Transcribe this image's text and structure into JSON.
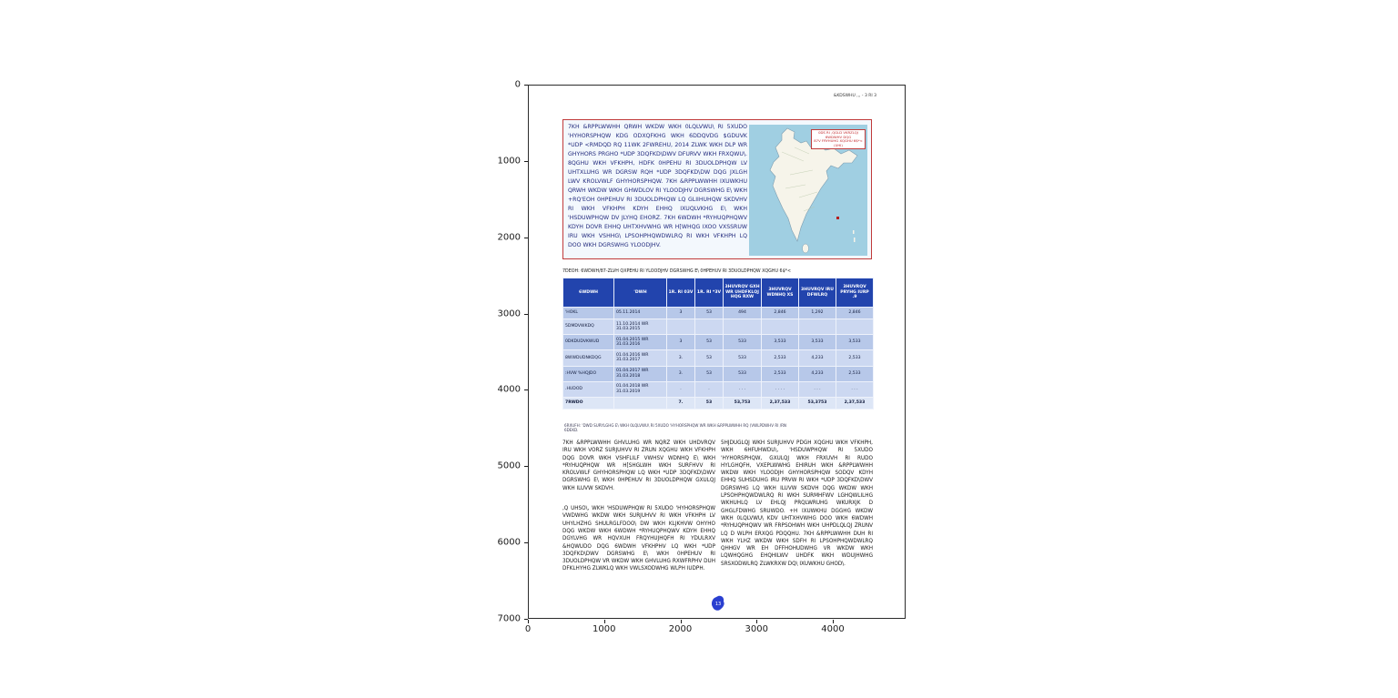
{
  "figure": {
    "x_ticks": [
      "0",
      "1000",
      "2000",
      "3000",
      "4000"
    ],
    "y_ticks": [
      "0",
      "1000",
      "2000",
      "3000",
      "4000",
      "5000",
      "6000",
      "7000"
    ]
  },
  "page": {
    "header_right": "&KDSWHU ,,, - 3 RI 3",
    "intro_box": {
      "text": "7KH &RPPLWWHH QRWH WKDW WKH 0LQLVWU\\ RI 5XUDO 'HYHORSPHQW KDG ODXQFKHG WKH 6DDQVDG $GDUVK *UDP <RMDQD RQ 11WK 2FWREHU, 2014 ZLWK WKH DLP WR GHYHORS PRGHO *UDP 3DQFKD\\DWV DFURVV WKH FRXQWU\\. 8QGHU WKH VFKHPH, HDFK 0HPEHU RI 3DUOLDPHQW LV UHTXLUHG WR DGRSW RQH *UDP 3DQFKD\\DW DQG JXLGH LWV KROLVWLF GHYHORSPHQW. 7KH &RPPLWWHH IXUWKHU QRWH WKDW WKH GHWDLOV RI YLOODJHV DGRSWHG E\\ WKH +RQ'EOH 0HPEHUV RI 3DUOLDPHQW LQ GLIIHUHQW SKDVHV RI WKH VFKHPH KDYH EHHQ IXUQLVKHG E\\ WKH 'HSDUWPHQW DV JLYHQ EHORZ. 7KH 6WDWH *RYHUQPHQWV KDYH DOVR EHHQ UHTXHVWHG WR H[WHQG IXOO VXSSRUW IRU WKH VSHHG\\ LPSOHPHQWDWLRQ RI WKH VFKHPH LQ DOO WKH DGRSWHG YLOODJHV.",
      "map": {
        "caption_line1": "0DS RI ,QGLD VKRZLQJ 6WDWHV DQG",
        "caption_line2": "87V FRYHUHG XQGHU 6$*< (UHI)"
      }
    },
    "table_title": "7DEOH: 6WDWH/87-ZLVH QXPEHU RI YLOODJHV DGRSWHG E\\ 0HPEHUV RI 3DUOLDPHQW XQGHU 6$*<",
    "table": {
      "headers": [
        "6WDWH",
        "'DWH",
        "1R. RI 03V",
        "1R. RI *3V",
        "3HUVRQV GXH WR UHDFKLQJ HQG RXW",
        "3HUVRQV WDNHQ XS",
        "3HUVRQV IRU DFWLRQ",
        "3HUVRQV PRYHG IURP .9"
      ],
      "rows": [
        [
          "'HOKL",
          "05.11.2014",
          "3",
          "53",
          "494",
          "2,846",
          "1,292",
          "2,846"
        ],
        [
          "5DMDVWKDQ",
          "11.10.2014 WR 31.03.2015",
          "",
          "",
          "",
          "",
          "",
          ""
        ],
        [
          "0DKDUDVKWUD",
          "01.04.2015 WR 31.03.2016",
          "3",
          "53",
          "533",
          "3,533",
          "3,533",
          "3,533"
        ],
        [
          "8WWDUDNKDQG",
          "01.04.2016 WR 31.03.2017",
          "3.",
          "53",
          "533",
          "2,533",
          "4,233",
          "2,533"
        ],
        [
          ":HVW %HQJDO",
          "01.04.2017 WR 31.03.2018",
          "3.",
          "53",
          "533",
          "2,533",
          "4,233",
          "2,533"
        ],
        [
          ".HUDOD",
          "01.04.2018 WR 31.03.2019",
          ".",
          ".",
          ". . .",
          ". . . .",
          ". . .",
          ". . ."
        ],
        [
          "7RWDO",
          "",
          "7.",
          "53",
          "53,753",
          "2,37,533",
          "53,3753",
          "2,37,533"
        ]
      ]
    },
    "source_note": "6RXUFH: 'DWD SURYLGHG E\\ WKH 0LQLVWU\\ RI 5XUDO 'HYHORSPHQW WR WKH &RPPLWWHH RQ (VWLPDWHV RI /RN 6DEKD.",
    "body": {
      "left_para_1": "7KH &RPPLWWHH GHVLUHG WR NQRZ WKH UHDVRQV IRU WKH VORZ SURJUHVV RI ZRUN XQGHU WKH VFKHPH DQG DOVR WKH VSHFLILF VWHSV WDNHQ E\\ WKH *RYHUQPHQW WR H[SHGLWH WKH SURFHVV RI KROLVWLF GHYHORSPHQW LQ WKH *UDP 3DQFKD\\DWV DGRSWHG E\\ WKH 0HPEHUV RI 3DUOLDPHQW GXULQJ WKH ILUVW SKDVH.",
      "left_para_2": ",Q UHSO\\, WKH 'HSDUWPHQW RI 5XUDO 'HYHORSPHQW VWDWHG WKDW WKH SURJUHVV RI WKH VFKHPH LV UHYLHZHG SHULRGLFDOO\\ DW WKH KLJKHVW OHYHO DQG WKDW WKH 6WDWH *RYHUQPHQWV KDYH EHHQ DGYLVHG WR HQVXUH FRQYHUJHQFH RI YDULRXV &HQWUDO DQG 6WDWH VFKHPHV LQ WKH *UDP 3DQFKD\\DWV DGRSWHG E\\ WKH 0HPEHUV RI 3DUOLDPHQW VR WKDW WKH GHVLUHG RXWFRPHV DUH DFKLHYHG ZLWKLQ WKH VWLSXODWHG WLPH IUDPH.",
      "right_para": "5HJDUGLQJ WKH SURJUHVV PDGH XQGHU WKH VFKHPH, WKH 6HFUHWDU\\, 'HSDUWPHQW RI 5XUDO 'HYHORSPHQW, GXULQJ WKH FRXUVH RI RUDO HYLGHQFH, VXEPLWWHG EHIRUH WKH &RPPLWWHH WKDW WKH YLOODJH GHYHORSPHQW SODQV KDYH EHHQ SUHSDUHG IRU PRVW RI WKH *UDP 3DQFKD\\DWV DGRSWHG LQ WKH ILUVW SKDVH DQG WKDW WKH LPSOHPHQWDWLRQ RI WKH SURMHFWV LGHQWLILHG WKHUHLQ LV EHLQJ PRQLWRUHG WKURXJK D GHGLFDWHG SRUWDO. +H IXUWKHU DGGHG WKDW WKH 0LQLVWU\\ KDV UHTXHVWHG DOO WKH 6WDWH *RYHUQPHQWV WR FRPSOHWH WKH UHPDLQLQJ ZRUNV LQ D WLPH ERXQG PDQQHU. 7KH &RPPLWWHH DUH RI WKH YLHZ WKDW WKH SDFH RI LPSOHPHQWDWLRQ QHHGV WR EH DFFHOHUDWHG VR WKDW WKH LQWHQGHG EHQHILWV UHDFK WKH WDUJHWHG SRSXODWLRQ ZLWKRXW DQ\\ IXUWKHU GHOD\\."
    },
    "stamp": "13"
  },
  "colors": {
    "accent_red": "#c03a3a",
    "table_header_blue": "#2244ad",
    "row_blue_dark": "#b7c8e9",
    "row_blue_light": "#ccd8f1",
    "map_water": "#a0cfe2"
  }
}
